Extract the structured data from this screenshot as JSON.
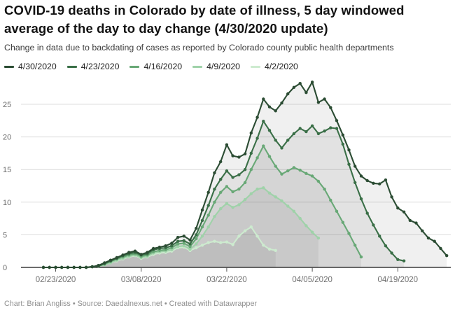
{
  "header": {
    "title": "COVID-19 deaths in Colorado by date of illness, 5 day windowed average of the day to day change (4/30/2020 update)",
    "subtitle": "Change in data due to backdating of cases as reported by Colorado county public health departments"
  },
  "footer": {
    "text": "Chart: Brian Angliss • Source: Daedalnexus.net • Created with Datawrapper"
  },
  "chart_data": {
    "type": "line",
    "title": "COVID-19 deaths in Colorado by date of illness, 5 day windowed average of the day to day change (4/30/2020 update)",
    "xlabel": "",
    "ylabel": "",
    "grid": true,
    "legend_position": "top",
    "ylim": [
      0,
      29
    ],
    "y_ticks": [
      0,
      5,
      10,
      15,
      20,
      25
    ],
    "x_tick_labels": [
      "02/23/2020",
      "03/08/2020",
      "03/22/2020",
      "04/05/2020",
      "04/19/2020"
    ],
    "x_tick_indices": [
      2,
      16,
      30,
      44,
      58
    ],
    "x_dates": [
      "02/21",
      "02/22",
      "02/23",
      "02/24",
      "02/25",
      "02/26",
      "02/27",
      "02/28",
      "02/29",
      "03/01",
      "03/02",
      "03/03",
      "03/04",
      "03/05",
      "03/06",
      "03/07",
      "03/08",
      "03/09",
      "03/10",
      "03/11",
      "03/12",
      "03/13",
      "03/14",
      "03/15",
      "03/16",
      "03/17",
      "03/18",
      "03/19",
      "03/20",
      "03/21",
      "03/22",
      "03/23",
      "03/24",
      "03/25",
      "03/26",
      "03/27",
      "03/28",
      "03/29",
      "03/30",
      "03/31",
      "04/01",
      "04/02",
      "04/03",
      "04/04",
      "04/05",
      "04/06",
      "04/07",
      "04/08",
      "04/09",
      "04/10",
      "04/11",
      "04/12",
      "04/13",
      "04/14",
      "04/15",
      "04/16",
      "04/17",
      "04/18",
      "04/19",
      "04/20",
      "04/21",
      "04/22",
      "04/23",
      "04/24",
      "04/25",
      "04/26",
      "04/27"
    ],
    "area_fill": "rgba(90,90,90,0.09)",
    "gridline_color": "#dcdcdc",
    "axis_line_color": "#141414",
    "axis_label_color": "#6e6e6e",
    "series": [
      {
        "name": "4/30/2020",
        "color": "#2b4c33",
        "values": [
          0,
          0,
          0,
          0,
          0,
          0,
          0,
          0,
          0.1,
          0.3,
          0.7,
          1.1,
          1.5,
          1.9,
          2.3,
          2.5,
          2.0,
          2.3,
          2.9,
          3.1,
          3.3,
          3.7,
          4.6,
          4.8,
          4.2,
          6.0,
          8.8,
          11.5,
          14.5,
          16.2,
          18.8,
          17.1,
          16.9,
          17.4,
          20.6,
          23.0,
          25.8,
          24.6,
          24.0,
          25.2,
          26.6,
          27.6,
          28.2,
          26.8,
          28.4,
          25.3,
          25.8,
          24.5,
          22.5,
          20.3,
          18.0,
          15.5,
          14.0,
          13.3,
          12.9,
          12.8,
          13.4,
          10.8,
          9.1,
          8.5,
          7.2,
          6.8,
          5.6,
          4.5,
          4.0,
          2.9,
          1.8
        ]
      },
      {
        "name": "4/23/2020",
        "color": "#3a6f47",
        "values": [
          0,
          0,
          0,
          0,
          0,
          0,
          0,
          0,
          0.1,
          0.2,
          0.6,
          1.0,
          1.4,
          1.8,
          2.1,
          2.3,
          1.9,
          2.1,
          2.7,
          2.9,
          3.0,
          3.3,
          4.0,
          4.1,
          3.6,
          5.0,
          7.2,
          9.5,
          12.0,
          13.5,
          14.8,
          13.8,
          14.2,
          15.0,
          17.5,
          19.8,
          22.4,
          21.0,
          19.5,
          18.3,
          19.5,
          20.5,
          21.3,
          20.8,
          21.7,
          20.5,
          20.9,
          21.4,
          21.3,
          18.9,
          15.8,
          13.0,
          10.5,
          8.3,
          6.5,
          4.8,
          3.3,
          2.2,
          1.2,
          1.0
        ]
      },
      {
        "name": "4/16/2020",
        "color": "#68a876",
        "values": [
          0,
          0,
          0,
          0,
          0,
          0,
          0,
          0,
          0.1,
          0.2,
          0.5,
          0.9,
          1.3,
          1.6,
          1.9,
          2.1,
          1.7,
          1.9,
          2.4,
          2.6,
          2.7,
          3.0,
          3.6,
          3.7,
          3.2,
          4.4,
          6.2,
          8.0,
          10.0,
          11.5,
          12.4,
          11.6,
          12.0,
          13.0,
          15.0,
          16.8,
          18.6,
          17.0,
          15.5,
          14.3,
          14.8,
          15.3,
          14.9,
          14.4,
          14.0,
          13.2,
          12.0,
          10.3,
          8.6,
          6.9,
          5.2,
          3.4,
          1.6
        ]
      },
      {
        "name": "4/9/2020",
        "color": "#9fd2a9",
        "values": [
          0,
          0,
          0,
          0,
          0,
          0,
          0,
          0,
          0.1,
          0.2,
          0.4,
          0.7,
          1.1,
          1.4,
          1.7,
          1.9,
          1.5,
          1.7,
          2.2,
          2.4,
          2.5,
          2.7,
          3.2,
          3.3,
          2.8,
          3.6,
          4.8,
          6.2,
          7.8,
          9.0,
          9.8,
          9.2,
          9.6,
          10.4,
          11.3,
          12.0,
          12.2,
          11.4,
          10.8,
          10.2,
          9.4,
          8.6,
          7.5,
          6.4,
          5.4,
          4.5
        ]
      },
      {
        "name": "4/2/2020",
        "color": "#cdebcf",
        "values": [
          0,
          0,
          0,
          0,
          0,
          0,
          0,
          0,
          0.1,
          0.2,
          0.4,
          0.7,
          1.0,
          1.3,
          1.6,
          1.8,
          1.4,
          1.6,
          2.0,
          2.2,
          2.3,
          2.5,
          3.0,
          3.1,
          2.6,
          3.0,
          3.4,
          3.8,
          4.0,
          3.8,
          3.9,
          3.5,
          4.8,
          5.6,
          6.2,
          4.8,
          3.4,
          2.8,
          2.6
        ]
      }
    ]
  }
}
